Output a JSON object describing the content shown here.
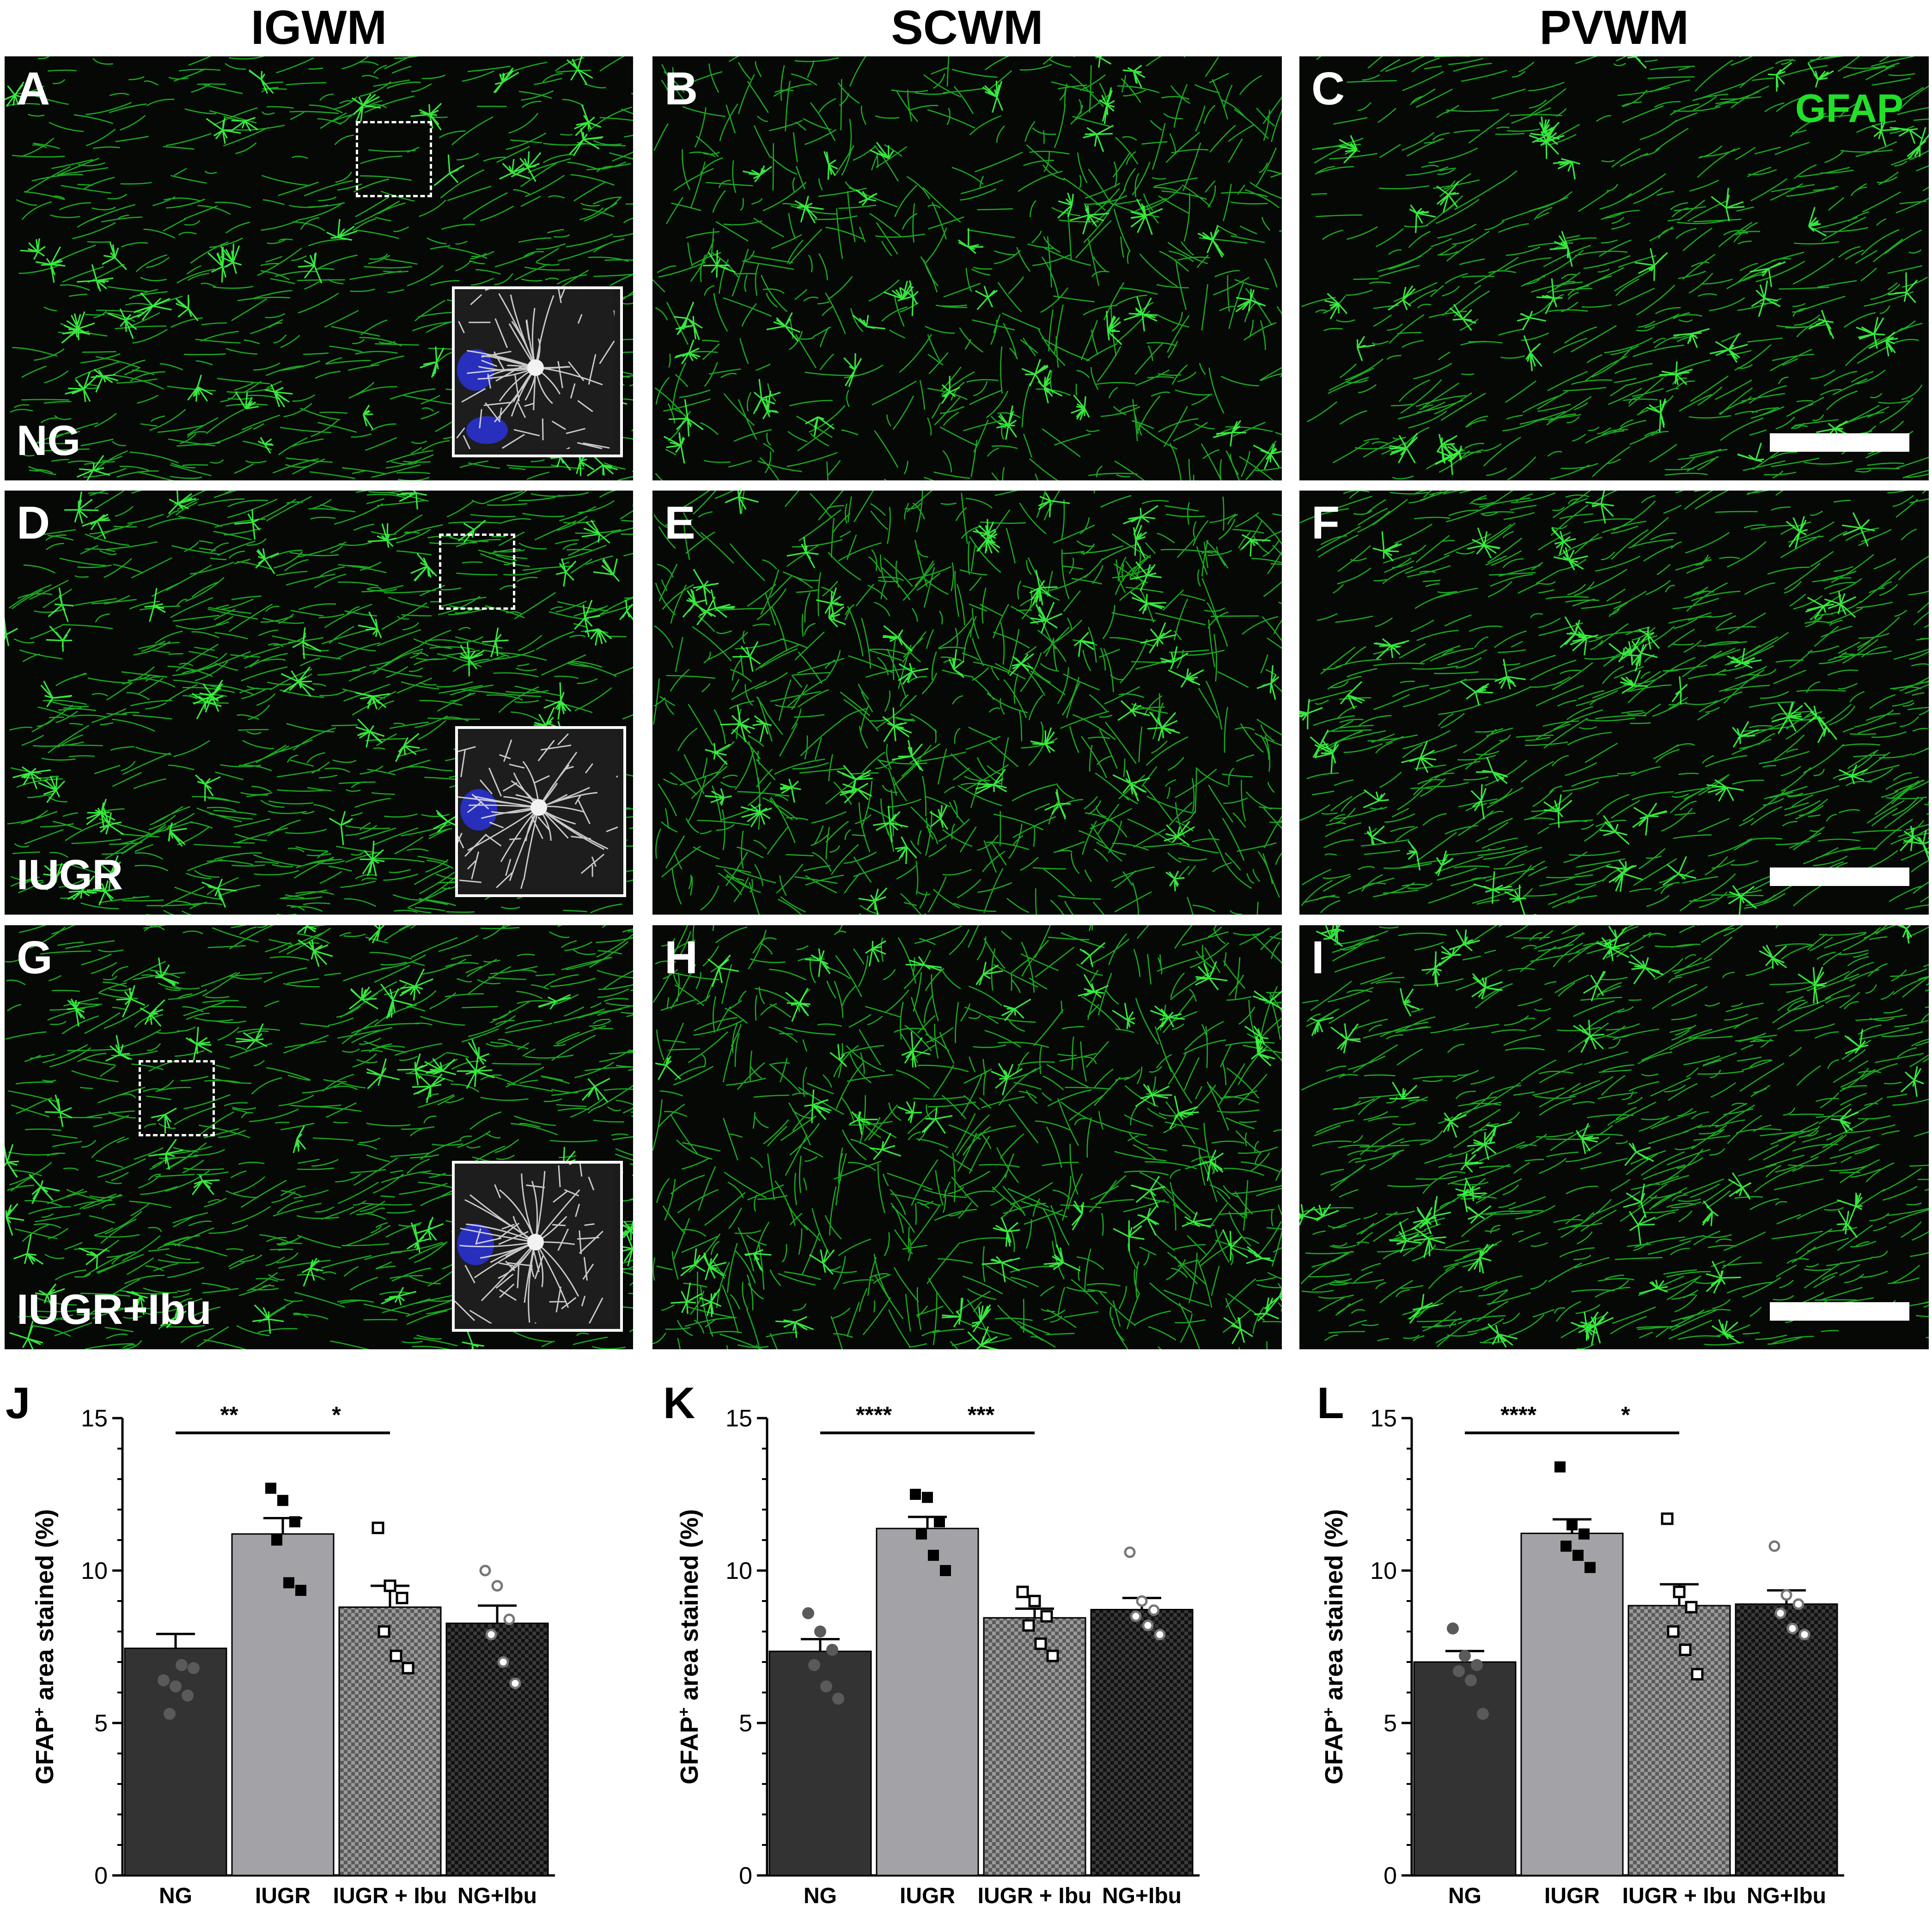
{
  "columns": [
    "IGWM",
    "SCWM",
    "PVWM"
  ],
  "rows": [
    {
      "group": "NG",
      "panels": [
        "A",
        "B",
        "C"
      ]
    },
    {
      "group": "IUGR",
      "panels": [
        "D",
        "E",
        "F"
      ]
    },
    {
      "group": "IUGR+Ibu",
      "panels": [
        "G",
        "H",
        "I"
      ]
    }
  ],
  "stain_label": "GFAP",
  "colors": {
    "gfap": "#22e02a",
    "nucleus": "#2a32d8",
    "NG": "#333333",
    "IUGR": "#a3a3a7",
    "IUGR + Ibu": "#8a8a8a",
    "NG+Ibu": "#222222"
  },
  "chart_data": [
    {
      "panel": "J",
      "type": "bar",
      "categories": [
        "NG",
        "IUGR",
        "IUGR + Ibu",
        "NG+Ibu"
      ],
      "values": [
        7.45,
        11.2,
        8.8,
        8.27
      ],
      "sem": [
        0.47,
        0.52,
        0.7,
        0.58
      ],
      "points": [
        [
          6.4,
          6.2,
          5.9,
          5.3,
          6.9,
          6.8
        ],
        [
          12.7,
          12.3,
          11.6,
          11.0,
          9.6,
          9.35
        ],
        [
          11.4,
          9.5,
          9.1,
          8.0,
          7.2,
          6.8
        ],
        [
          10.0,
          9.5,
          8.4,
          7.9,
          7.0,
          6.3
        ]
      ],
      "ylabel": "GFAP+ area stained (%)",
      "ylabel_main": "GFAP",
      "ylabel_sup": "+",
      "ylabel_rest": " area stained (%)",
      "ylim": [
        0,
        15
      ],
      "yticks": [
        0,
        5,
        10,
        15
      ],
      "significance": [
        {
          "from": 0,
          "to": 1,
          "label": "**"
        },
        {
          "from": 1,
          "to": 2,
          "label": "*"
        }
      ]
    },
    {
      "panel": "K",
      "type": "bar",
      "categories": [
        "NG",
        "IUGR",
        "IUGR + Ibu",
        "NG+Ibu"
      ],
      "values": [
        7.35,
        11.38,
        8.45,
        8.72
      ],
      "sem": [
        0.4,
        0.38,
        0.3,
        0.38
      ],
      "points": [
        [
          8.6,
          8.0,
          7.4,
          6.9,
          6.2,
          5.8
        ],
        [
          12.5,
          12.4,
          11.6,
          11.2,
          10.5,
          10.0
        ],
        [
          9.3,
          9.0,
          8.5,
          8.2,
          7.6,
          7.2
        ],
        [
          10.6,
          9.0,
          8.7,
          8.5,
          8.2,
          7.9
        ]
      ],
      "ylabel": "GFAP+ area stained (%)",
      "ylabel_main": "GFAP",
      "ylabel_sup": "+",
      "ylabel_rest": " area stained (%)",
      "ylim": [
        0,
        15
      ],
      "yticks": [
        0,
        5,
        10,
        15
      ],
      "significance": [
        {
          "from": 0,
          "to": 1,
          "label": "****"
        },
        {
          "from": 1,
          "to": 2,
          "label": "***"
        }
      ]
    },
    {
      "panel": "L",
      "type": "bar",
      "categories": [
        "NG",
        "IUGR",
        "IUGR + Ibu",
        "NG+Ibu"
      ],
      "values": [
        7.0,
        11.22,
        8.85,
        8.9
      ],
      "sem": [
        0.36,
        0.46,
        0.7,
        0.45
      ],
      "points": [
        [
          8.1,
          7.2,
          6.9,
          6.7,
          6.4,
          5.3
        ],
        [
          13.4,
          11.5,
          11.2,
          10.8,
          10.5,
          10.1
        ],
        [
          11.7,
          9.3,
          8.8,
          8.0,
          7.4,
          6.6
        ],
        [
          10.8,
          9.2,
          8.9,
          8.6,
          8.1,
          7.9
        ]
      ],
      "ylabel": "GFAP+ area stained (%)",
      "ylabel_main": "GFAP",
      "ylabel_sup": "+",
      "ylabel_rest": " area stained (%)",
      "ylim": [
        0,
        15
      ],
      "yticks": [
        0,
        5,
        10,
        15
      ],
      "significance": [
        {
          "from": 0,
          "to": 1,
          "label": "****"
        },
        {
          "from": 1,
          "to": 2,
          "label": "*"
        }
      ]
    }
  ]
}
